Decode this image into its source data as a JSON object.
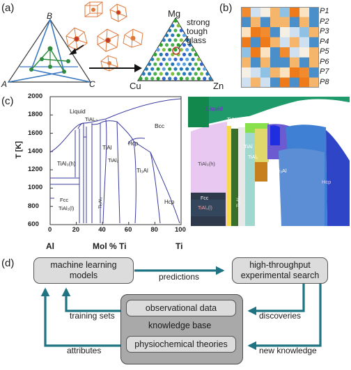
{
  "panels": {
    "a": "(a)",
    "b": "(b)",
    "c": "(c)",
    "d": "(d)"
  },
  "ternary_left": {
    "top": "B",
    "left": "A",
    "right": "C"
  },
  "ternary_right": {
    "top": "Mg",
    "left": "Cu",
    "right": "Zn",
    "annotation": [
      "strong",
      "tough",
      "glass"
    ]
  },
  "property_labels": [
    "P1",
    "P2",
    "P3",
    "P4",
    "P5",
    "P6",
    "P7",
    "P8"
  ],
  "phase_diagram": {
    "ylabel": "T [K]",
    "xlabel": "Mol % Ti",
    "x_left_element": "Al",
    "x_right_element": "Ti",
    "yticks": [
      "2000",
      "1800",
      "1600",
      "1400",
      "1200",
      "1000",
      "800",
      "600"
    ],
    "xticks": [
      "0",
      "20",
      "40",
      "60",
      "80",
      "100"
    ],
    "phases": {
      "liquid": "Liquid",
      "tial3_top": "TiAL₃",
      "bcc": "Bcc",
      "tial": "TiAl",
      "tial2": "TiAl₂",
      "hcp_mid": "Hcp",
      "tial3h": "TiAl₃(h)",
      "ti3al": "Ti₃Al",
      "hcp_right": "Hcp",
      "fcc": "Fcc",
      "tial3l": "TiAl₃(l)",
      "ti5al": "Ti₅Al₃"
    }
  },
  "prediction_map": {
    "labels": {
      "liquid": "Liquid",
      "tial3_top": "TiAL₃",
      "tial": "TiAl",
      "tial2": "TiAl₂",
      "tial3h": "TiAl₃(h)",
      "ti3al": "Ti₃Al",
      "hcp": "Hcp",
      "fcc": "Fcc",
      "tial3l": "TiAl₃(l)",
      "ti5al": "Ti₅Al₃"
    }
  },
  "workflow": {
    "ml_models": [
      "machine learning",
      "models"
    ],
    "experimental_search": [
      "high-throughput",
      "experimental search"
    ],
    "observational_data": "observational data",
    "knowledge_base": "knowledge base",
    "physiochemical_theories": "physiochemical theories",
    "edges": {
      "predictions": "predictions",
      "training_sets": "training sets",
      "discoveries": "discoveries",
      "attributes": "attributes",
      "new_knowledge": "new knowledge"
    }
  },
  "colors": {
    "arrow": "#1f7382",
    "ternary_edge": "#3a78c0",
    "ternary_inner": "#2e8b3e",
    "cluster": "#e07a3c"
  }
}
